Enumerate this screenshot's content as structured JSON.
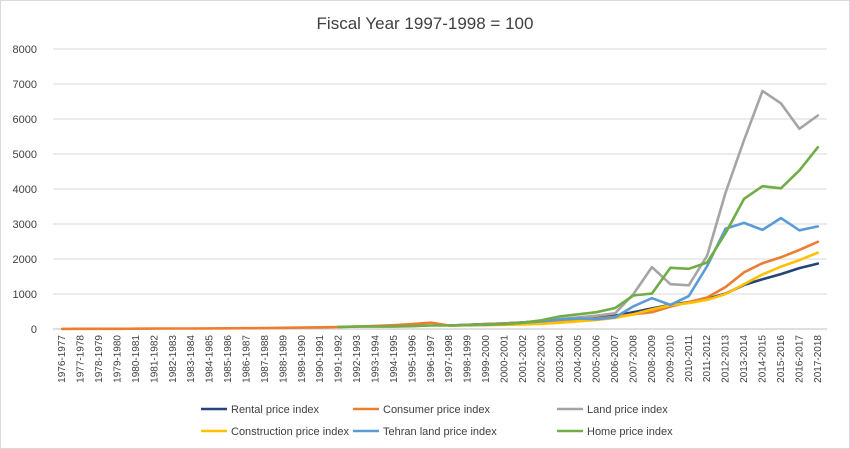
{
  "chart_data": {
    "type": "line",
    "title": "Fiscal Year 1997-1998 = 100",
    "xlabel": "",
    "ylabel": "",
    "ylim": [
      0,
      8000
    ],
    "yticks": [
      "0",
      "1000",
      "2000",
      "3000",
      "4000",
      "5000",
      "6000",
      "7000",
      "8000"
    ],
    "grid": "horizontal",
    "legend_position": "bottom",
    "categories": [
      "1976-1977",
      "1977-1978",
      "1978-1979",
      "1979-1980",
      "1980-1981",
      "1981-1982",
      "1982-1983",
      "1983-1984",
      "1984-1985",
      "1985-1986",
      "1986-1987",
      "1987-1988",
      "1988-1989",
      "1989-1990",
      "1990-1991",
      "1991-1992",
      "1992-1993",
      "1993-1994",
      "1994-1995",
      "1995-1996",
      "1996-1997",
      "1997-1998",
      "1998-1999",
      "1999-2000",
      "2000-2001",
      "2001-2002",
      "2002-2003",
      "2003-2004",
      "2004-2005",
      "2005-2006",
      "2006-2007",
      "2007-2008",
      "2008-2009",
      "2009-2010",
      "2010-2011",
      "2011-2012",
      "2012-2013",
      "2013-2014",
      "2014-2015",
      "2015-2016",
      "2016-2017",
      "2017-2018"
    ],
    "series": [
      {
        "name": "Rental price index",
        "color": "#264478",
        "values": [
          null,
          null,
          null,
          null,
          null,
          null,
          null,
          null,
          null,
          null,
          null,
          null,
          null,
          null,
          null,
          null,
          null,
          null,
          null,
          null,
          null,
          100,
          120,
          140,
          160,
          190,
          220,
          260,
          300,
          330,
          380,
          480,
          590,
          690,
          770,
          860,
          1010,
          1260,
          1420,
          1570,
          1740,
          1870
        ]
      },
      {
        "name": "Consumer price index",
        "color": "#ED7D31",
        "values": [
          4,
          5,
          6,
          7,
          9,
          11,
          13,
          15,
          17,
          19,
          22,
          27,
          34,
          40,
          48,
          58,
          72,
          88,
          108,
          140,
          180,
          100,
          118,
          140,
          158,
          180,
          210,
          240,
          270,
          300,
          350,
          420,
          480,
          640,
          770,
          900,
          1200,
          1620,
          1880,
          2050,
          2260,
          2490
        ]
      },
      {
        "name": "Land price index",
        "color": "#A5A5A5",
        "values": [
          null,
          null,
          null,
          null,
          null,
          null,
          null,
          null,
          null,
          null,
          null,
          null,
          null,
          null,
          null,
          null,
          null,
          null,
          null,
          null,
          null,
          100,
          110,
          130,
          150,
          190,
          230,
          280,
          330,
          380,
          450,
          1000,
          1770,
          1280,
          1250,
          2100,
          3900,
          5400,
          6800,
          6450,
          5720,
          6100
        ]
      },
      {
        "name": "Construction price index",
        "color": "#FFC000",
        "values": [
          null,
          null,
          null,
          null,
          null,
          null,
          null,
          null,
          null,
          null,
          null,
          null,
          null,
          null,
          null,
          null,
          null,
          null,
          null,
          null,
          null,
          100,
          105,
          110,
          120,
          130,
          150,
          180,
          220,
          260,
          320,
          420,
          560,
          680,
          740,
          830,
          1000,
          1280,
          1560,
          1780,
          1970,
          2180
        ]
      },
      {
        "name": "Tehran land price index",
        "color": "#5B9BD5",
        "values": [
          null,
          null,
          null,
          null,
          null,
          null,
          null,
          null,
          null,
          null,
          null,
          null,
          null,
          null,
          null,
          null,
          null,
          null,
          null,
          null,
          null,
          100,
          110,
          120,
          140,
          180,
          220,
          270,
          300,
          280,
          330,
          650,
          880,
          690,
          940,
          1800,
          2870,
          3030,
          2830,
          3170,
          2820,
          2930
        ]
      },
      {
        "name": "Home price index",
        "color": "#70AD47",
        "values": [
          null,
          null,
          null,
          null,
          null,
          null,
          null,
          null,
          null,
          null,
          null,
          null,
          null,
          null,
          null,
          60,
          70,
          70,
          70,
          80,
          100,
          100,
          110,
          130,
          140,
          180,
          250,
          360,
          420,
          480,
          600,
          960,
          1010,
          1750,
          1720,
          1900,
          2740,
          3720,
          4080,
          4020,
          4530,
          5190
        ]
      }
    ]
  }
}
